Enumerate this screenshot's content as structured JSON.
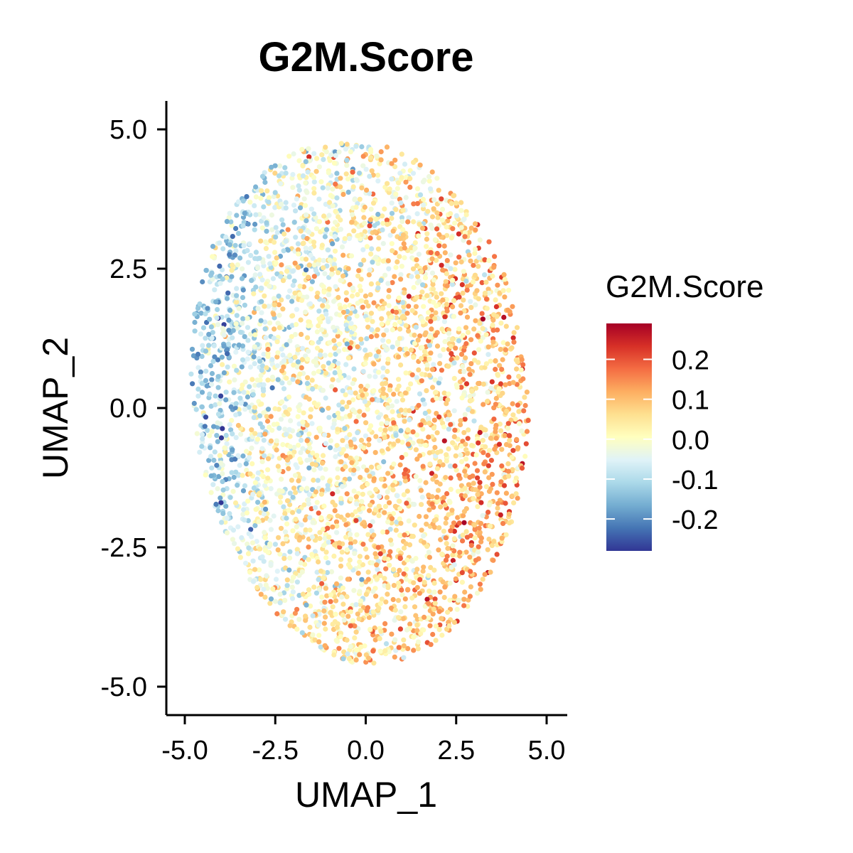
{
  "chart_data": {
    "type": "scatter",
    "title": "G2M.Score",
    "xlabel": "UMAP_1",
    "ylabel": "UMAP_2",
    "xlim": [
      -5.45,
      5.45
    ],
    "ylim": [
      -5.5,
      5.5
    ],
    "x_ticks": [
      -5.0,
      -2.5,
      0.0,
      2.5,
      5.0
    ],
    "x_tick_labels": [
      "-5.0",
      "-2.5",
      "0.0",
      "2.5",
      "5.0"
    ],
    "y_ticks": [
      -5.0,
      -2.5,
      0.0,
      2.5,
      5.0
    ],
    "y_tick_labels": [
      "-5.0",
      "-2.5",
      "0.0",
      "2.5",
      "5.0"
    ],
    "grid": false,
    "legend": {
      "title": "G2M.Score",
      "placement": "right",
      "type": "colorbar",
      "range": [
        -0.28,
        0.29
      ],
      "ticks": [
        0.2,
        0.1,
        0.0,
        -0.1,
        -0.2
      ],
      "tick_labels": [
        "0.2",
        "0.1",
        "0.0",
        "-0.1",
        "-0.2"
      ],
      "palette": [
        "#313695",
        "#4575b4",
        "#74add1",
        "#abd9e9",
        "#e0f3f8",
        "#ffffbf",
        "#fee090",
        "#fdae61",
        "#f46d43",
        "#d73027",
        "#a50026"
      ]
    },
    "cloud": {
      "description_units": "data",
      "center": [
        0.0,
        0.2
      ],
      "extent_x": [
        -4.9,
        4.6
      ],
      "extent_y": [
        -4.6,
        4.8
      ],
      "point_count": 4000,
      "score_trend": "higher (red/orange) toward right and lower-right, lower (blue) toward left edge"
    }
  }
}
